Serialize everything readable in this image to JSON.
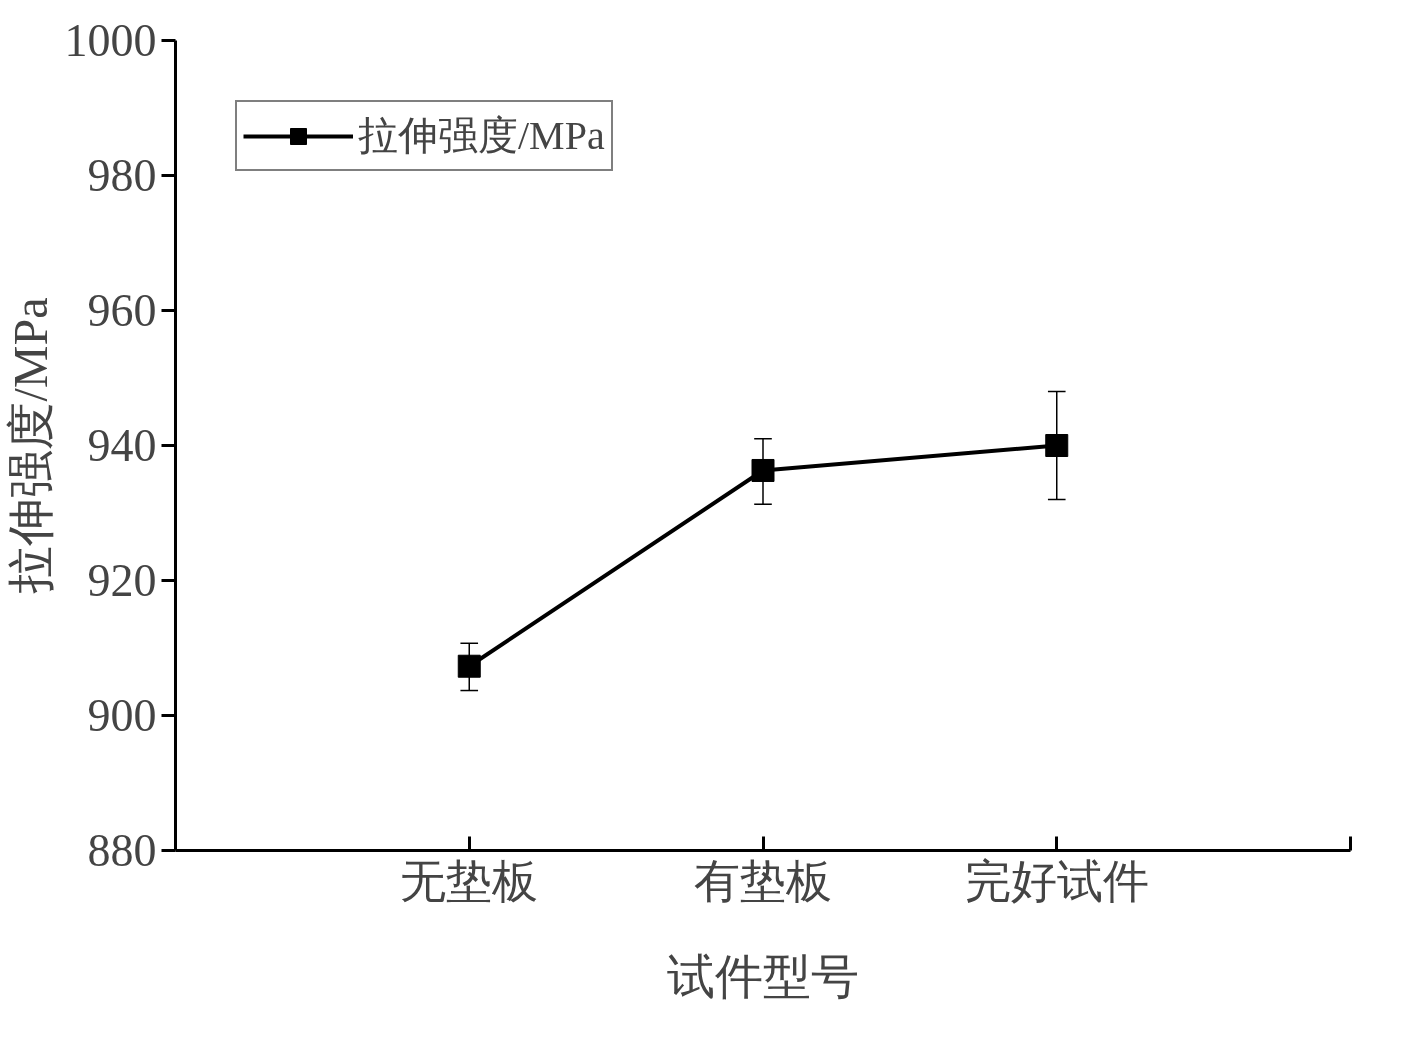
{
  "chart_data": {
    "type": "line",
    "xlabel": "试件型号",
    "ylabel": "拉伸强度/MPa",
    "categories": [
      "无垫板",
      "有垫板",
      "完好试件"
    ],
    "series": [
      {
        "name": "拉伸强度/MPa",
        "color": "#000000",
        "values": [
          907.3,
          936.3,
          940.0
        ],
        "errors": [
          [
            903.7,
            910.7
          ],
          [
            931.3,
            941.0
          ],
          [
            932.0,
            948.0
          ]
        ]
      }
    ],
    "ylim": [
      880,
      1000
    ],
    "yticks": [
      880,
      900,
      920,
      940,
      960,
      980,
      1000
    ],
    "grid": false,
    "legend": "top left",
    "marker": "square",
    "line_style": "solid"
  }
}
